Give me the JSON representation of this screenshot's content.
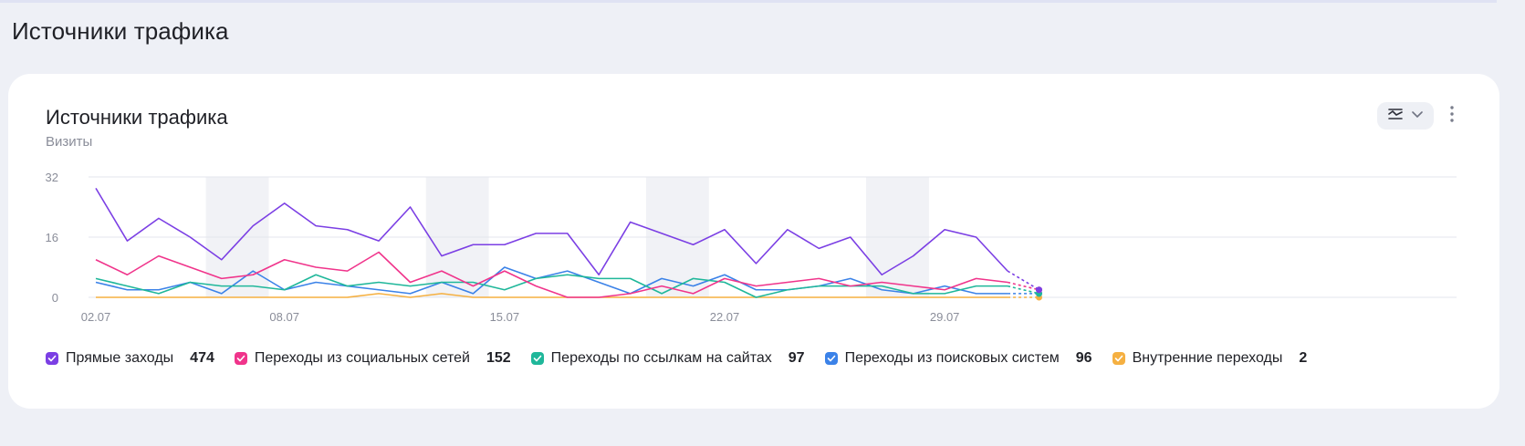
{
  "page": {
    "title": "Источники трафика"
  },
  "card": {
    "title": "Источники трафика",
    "subtitle": "Визиты"
  },
  "icons": {
    "chart_type": "area-chart-icon",
    "dropdown": "chevron-down-icon",
    "more": "more-vertical-icon"
  },
  "colors": {
    "direct": "#7b3fe4",
    "social": "#f0348b",
    "links": "#1fb79a",
    "search": "#3b82e8",
    "internal": "#f5b041"
  },
  "chart_data": {
    "type": "line",
    "y_ticks": [
      "32",
      "16",
      "0"
    ],
    "ylim": [
      0,
      32
    ],
    "x_tick_labels": [
      {
        "index": 0,
        "label": "02.07"
      },
      {
        "index": 6,
        "label": "08.07"
      },
      {
        "index": 13,
        "label": "15.07"
      },
      {
        "index": 20,
        "label": "22.07"
      },
      {
        "index": 27,
        "label": "29.07"
      }
    ],
    "weekend_bands": [
      [
        4,
        5
      ],
      [
        11,
        12
      ],
      [
        18,
        19
      ],
      [
        25,
        26
      ]
    ],
    "grid": true,
    "dashed_last_segment": true,
    "series": [
      {
        "key": "direct",
        "name": "Прямые заходы",
        "total": "474",
        "values": [
          29,
          15,
          21,
          16,
          10,
          19,
          25,
          19,
          18,
          15,
          24,
          11,
          14,
          14,
          17,
          17,
          6,
          20,
          17,
          14,
          18,
          9,
          18,
          13,
          16,
          6,
          11,
          18,
          16,
          7,
          2
        ]
      },
      {
        "key": "social",
        "name": "Переходы из социальных сетей",
        "total": "152",
        "values": [
          10,
          6,
          11,
          8,
          5,
          6,
          10,
          8,
          7,
          12,
          4,
          7,
          3,
          7,
          3,
          0,
          0,
          1,
          3,
          1,
          5,
          3,
          4,
          5,
          3,
          4,
          3,
          2,
          5,
          4,
          2
        ]
      },
      {
        "key": "links",
        "name": "Переходы по ссылкам на сайтах",
        "total": "97",
        "values": [
          5,
          3,
          1,
          4,
          3,
          3,
          2,
          6,
          3,
          4,
          3,
          4,
          4,
          2,
          5,
          6,
          5,
          5,
          1,
          5,
          4,
          0,
          2,
          3,
          3,
          3,
          1,
          1,
          3,
          3,
          1
        ]
      },
      {
        "key": "search",
        "name": "Переходы из поисковых систем",
        "total": "96",
        "values": [
          4,
          2,
          2,
          4,
          1,
          7,
          2,
          4,
          3,
          2,
          1,
          4,
          1,
          8,
          5,
          7,
          4,
          1,
          5,
          3,
          6,
          2,
          2,
          3,
          5,
          2,
          1,
          3,
          1,
          1,
          1
        ]
      },
      {
        "key": "internal",
        "name": "Внутренние переходы",
        "total": "2",
        "values": [
          0,
          0,
          0,
          0,
          0,
          0,
          0,
          0,
          0,
          1,
          0,
          1,
          0,
          0,
          0,
          0,
          0,
          0,
          0,
          0,
          0,
          0,
          0,
          0,
          0,
          0,
          0,
          0,
          0,
          0,
          0
        ]
      }
    ]
  }
}
